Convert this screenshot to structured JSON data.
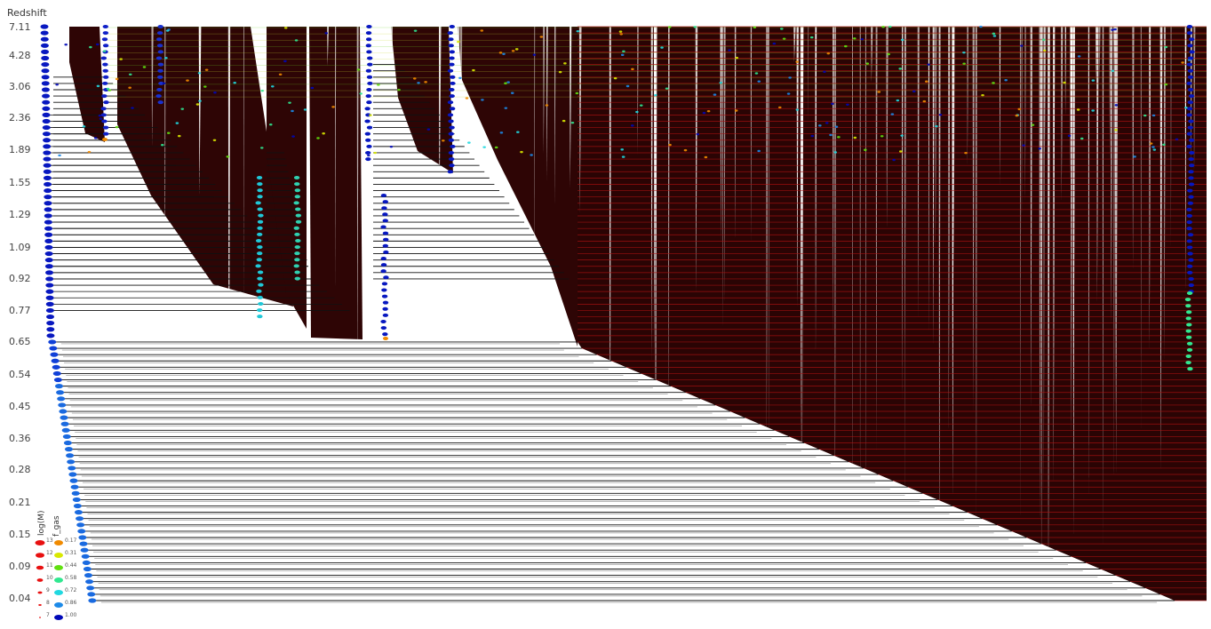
{
  "chart_data": {
    "type": "merger-tree",
    "ylabel": "Redshift",
    "y_ticks": [
      "7.11",
      "4.28",
      "3.06",
      "2.36",
      "1.89",
      "1.55",
      "1.29",
      "1.09",
      "0.92",
      "0.77",
      "0.65",
      "0.54",
      "0.45",
      "0.36",
      "0.28",
      "0.21",
      "0.15",
      "0.09",
      "0.04"
    ],
    "legend": {
      "mass_title": "log(M)",
      "gas_title": "f_gas",
      "mass_labels": [
        "13",
        "12",
        "11",
        "10",
        "9",
        "8",
        "7"
      ],
      "gas_labels": [
        "0.17",
        "0.31",
        "0.44",
        "0.58",
        "0.72",
        "0.86",
        "1.00"
      ],
      "gas_colors": [
        "#f08a00",
        "#d8e800",
        "#60e010",
        "#30e890",
        "#20d8e0",
        "#1c8ae8",
        "#0008b8"
      ]
    }
  }
}
